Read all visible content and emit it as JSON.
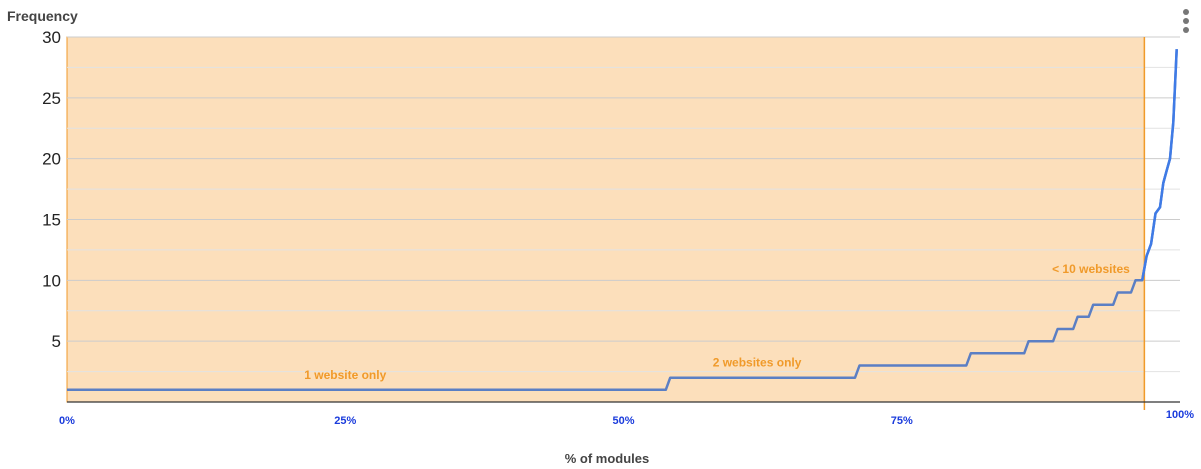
{
  "chart_data": {
    "type": "line",
    "ylabel": "Frequency",
    "xlabel": "% of modules",
    "ylim": [
      0,
      30
    ],
    "yticks": [
      "5",
      "10",
      "15",
      "20",
      "25",
      "30"
    ],
    "xticks": [
      "0%",
      "25%",
      "50%",
      "75%",
      "100%"
    ],
    "grid": true,
    "series": [
      {
        "color": "#5b7fc4",
        "points": [
          [
            0,
            1
          ],
          [
            53.8,
            1
          ],
          [
            54.2,
            2
          ],
          [
            70.8,
            2
          ],
          [
            71.2,
            3
          ],
          [
            80.8,
            3
          ],
          [
            81.2,
            4
          ],
          [
            86,
            4
          ],
          [
            86.4,
            5
          ],
          [
            88.6,
            5
          ],
          [
            89,
            6
          ],
          [
            90.4,
            6
          ],
          [
            90.8,
            7
          ],
          [
            91.8,
            7
          ],
          [
            92.2,
            8
          ],
          [
            94,
            8
          ],
          [
            94.4,
            9
          ],
          [
            95.6,
            9
          ],
          [
            96,
            10
          ],
          [
            96.6,
            10
          ],
          [
            97,
            12
          ],
          [
            97.4,
            13
          ],
          [
            97.8,
            15.5
          ],
          [
            98.2,
            16
          ],
          [
            98.5,
            18
          ],
          [
            98.8,
            19
          ],
          [
            99.1,
            20
          ],
          [
            99.4,
            23
          ],
          [
            99.7,
            29
          ]
        ]
      }
    ],
    "highlight_region": {
      "x_start": 0,
      "x_end": 96.8,
      "y_top": 30,
      "color": "#fcdfbb",
      "edge_color": "#f09a2a"
    },
    "annotations": [
      {
        "text": "1 website only",
        "x": 25,
        "y": 1
      },
      {
        "text": "2 websites only",
        "x": 62,
        "y": 2
      },
      {
        "text": "< 10 websites",
        "x": 92,
        "y": 9.7
      }
    ]
  },
  "menu": {
    "icon": "more-vert-icon"
  }
}
